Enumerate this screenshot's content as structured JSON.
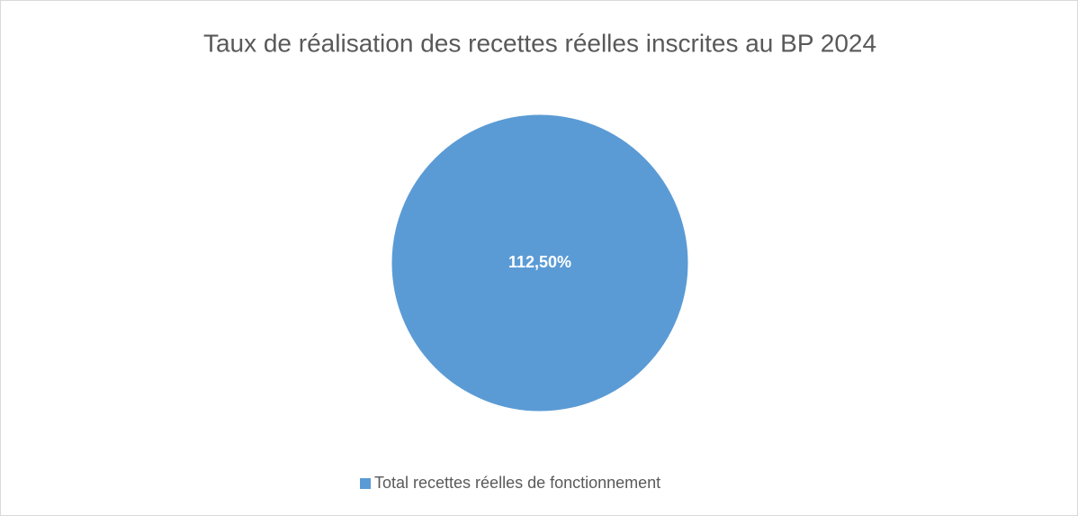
{
  "chart_data": {
    "type": "pie",
    "title": "Taux de réalisation des recettes réelles inscrites au BP 2024",
    "categories": [
      "Total recettes réelles de fonctionnement"
    ],
    "values": [
      112.5
    ],
    "value_labels": [
      "112,50%"
    ],
    "colors": [
      "#5b9bd5"
    ],
    "legend": "bottom"
  }
}
